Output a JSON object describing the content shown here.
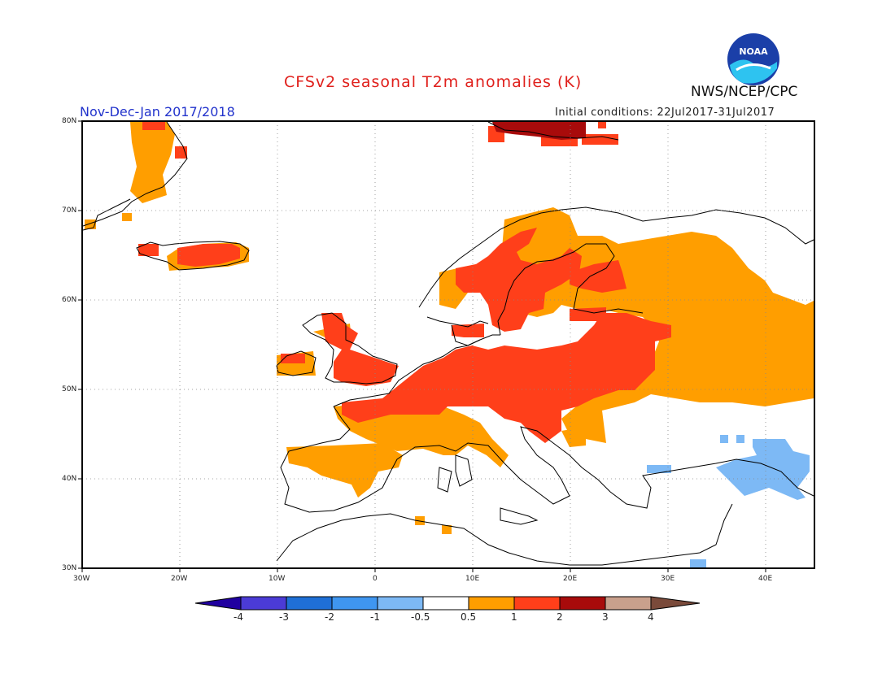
{
  "header": {
    "title": "CFSv2 seasonal T2m anomalies (K)",
    "period": "Nov-Dec-Jan 2017/2018",
    "initial_conditions": "Initial conditions: 22Jul2017-31Jul2017",
    "agency": "NWS/NCEP/CPC",
    "logo_text": "NOAA"
  },
  "map": {
    "region": "Europe",
    "lon_range": [
      -30,
      45
    ],
    "lat_range": [
      30,
      80
    ],
    "lat_labels": [
      "80N",
      "70N",
      "60N",
      "50N",
      "40N",
      "30N"
    ],
    "lon_labels": [
      "30W",
      "20W",
      "10W",
      "0",
      "10E",
      "20E",
      "30E",
      "40E"
    ],
    "grid": "dotted",
    "colors": {
      "anom_0_5_1": "#ff9e00",
      "anom_1_2": "#ff3f1a",
      "anom_2_3": "#a80b0b",
      "neg_0_5_1": "#7db9f5",
      "coast": "#000000"
    }
  },
  "colorbar": {
    "labels": [
      "-4",
      "-3",
      "-2",
      "-1",
      "-0.5",
      "0.5",
      "1",
      "2",
      "3",
      "4"
    ],
    "colors": [
      "#2000a0",
      "#4b3bd6",
      "#1f6fd6",
      "#3f96f0",
      "#7db9f5",
      "#ffffff",
      "#ff9e00",
      "#ff3f1a",
      "#a80b0b",
      "#c9a08c",
      "#7a4a3a"
    ]
  }
}
